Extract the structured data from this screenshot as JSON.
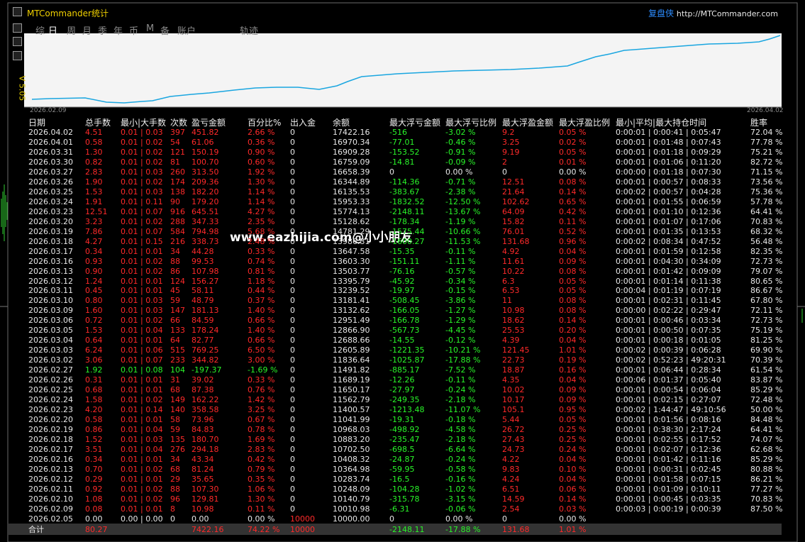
{
  "header": {
    "title": "MTCommander统计",
    "brand": "复盘侠",
    "url": "http://MTCommander.com",
    "version": "V 5.05"
  },
  "tabs": [
    "综",
    "日",
    "周",
    "月",
    "季",
    "年",
    "币",
    "M",
    "备",
    "账户",
    "轨迹"
  ],
  "chart": {
    "start": "2026.02.09",
    "end": "2026.04.02"
  },
  "watermark": "www.eazhijia.com@小小朋友",
  "table": {
    "columns": [
      "日期",
      "总手数",
      "最小|大手数",
      "次数",
      "盈亏金额",
      "百分比%",
      "出入金",
      "余额",
      "最大浮亏金额",
      "最大浮亏比例",
      "最大浮盈金额",
      "最大浮盈比例",
      "最小|平均|最大持仓时间",
      "胜率"
    ],
    "rows": [
      [
        "2026.04.02",
        "4.51",
        "0.01 | 0.03",
        "397",
        "451.82",
        "2.66 %",
        "0",
        "17422.16",
        "-516",
        "-3.02 %",
        "9.2",
        "0.05 %",
        "0:00:01 | 0:00:41 | 0:05:47",
        "72.04 %"
      ],
      [
        "2026.04.01",
        "0.58",
        "0.01 | 0.02",
        "54",
        "61.06",
        "0.36 %",
        "0",
        "16970.34",
        "-77.01",
        "-0.46 %",
        "3.25",
        "0.02 %",
        "0:00:01 | 0:01:48 | 0:07:43",
        "77.78 %"
      ],
      [
        "2026.03.31",
        "1.30",
        "0.01 | 0.02",
        "121",
        "150.19",
        "0.90 %",
        "0",
        "16909.28",
        "-153.52",
        "-0.91 %",
        "9.19",
        "0.05 %",
        "0:00:01 | 0:01:18 | 0:09:29",
        "75.21 %"
      ],
      [
        "2026.03.30",
        "0.82",
        "0.01 | 0.02",
        "81",
        "100.70",
        "0.60 %",
        "0",
        "16759.09",
        "-14.81",
        "-0.09 %",
        "2",
        "0.01 %",
        "0:00:01 | 0:01:06 | 0:11:20",
        "82.72 %"
      ],
      [
        "2026.03.27",
        "2.83",
        "0.01 | 0.03",
        "260",
        "313.50",
        "1.92 %",
        "0",
        "16658.39",
        "0",
        "0.00 %",
        "0",
        "0.00 %",
        "0:00:00 | 0:01:18 | 0:07:30",
        "71.15 %"
      ],
      [
        "2026.03.26",
        "1.90",
        "0.01 | 0.02",
        "174",
        "209.36",
        "1.30 %",
        "0",
        "16344.89",
        "-114.36",
        "-0.71 %",
        "12.51",
        "0.08 %",
        "0:00:01 | 0:00:57 | 0:08:33",
        "73.56 %"
      ],
      [
        "2026.03.25",
        "1.53",
        "0.01 | 0.03",
        "138",
        "182.20",
        "1.14 %",
        "0",
        "16135.53",
        "-383.67",
        "-2.38 %",
        "21.64",
        "0.14 %",
        "0:00:02 | 0:00:57 | 0:04:28",
        "75.36 %"
      ],
      [
        "2026.03.24",
        "1.91",
        "0.01 | 0.11",
        "90",
        "179.20",
        "1.14 %",
        "0",
        "15953.33",
        "-1832.52",
        "-12.50 %",
        "102.62",
        "0.65 %",
        "0:00:01 | 0:01:55 | 0:06:59",
        "57.78 %"
      ],
      [
        "2026.03.23",
        "12.51",
        "0.01 | 0.07",
        "916",
        "645.51",
        "4.27 %",
        "0",
        "15774.13",
        "-2148.11",
        "-13.67 %",
        "64.09",
        "0.42 %",
        "0:00:01 | 0:01:10 | 0:12:36",
        "64.41 %"
      ],
      [
        "2026.03.20",
        "3.23",
        "0.01 | 0.02",
        "288",
        "347.33",
        "2.35 %",
        "0",
        "15128.62",
        "-178.34",
        "-1.19 %",
        "15.82",
        "0.11 %",
        "0:00:01 | 0:01:07 | 0:17:06",
        "70.83 %"
      ],
      [
        "2026.03.19",
        "7.86",
        "0.01 | 0.07",
        "584",
        "794.98",
        "5.68 %",
        "0",
        "14781.29",
        "-1575.44",
        "-10.66 %",
        "76.01",
        "0.52 %",
        "0:00:01 | 0:01:35 | 0:13:53",
        "68.32 %"
      ],
      [
        "2026.03.18",
        "4.27",
        "0.01 | 0.15",
        "216",
        "338.73",
        "2.48 %",
        "0",
        "13986.31",
        "-1600.27",
        "-11.53 %",
        "131.68",
        "0.96 %",
        "0:00:02 | 0:08:34 | 0:47:52",
        "56.48 %"
      ],
      [
        "2026.03.17",
        "0.34",
        "0.01 | 0.01",
        "34",
        "44.28",
        "0.33 %",
        "0",
        "13647.58",
        "-15.35",
        "-0.11 %",
        "4.92",
        "0.04 %",
        "0:00:01 | 0:01:59 | 0:12:58",
        "82.35 %"
      ],
      [
        "2026.03.16",
        "0.93",
        "0.01 | 0.02",
        "88",
        "99.53",
        "0.74 %",
        "0",
        "13603.30",
        "-151.11",
        "-1.11 %",
        "11.61",
        "0.09 %",
        "0:00:01 | 0:04:30 | 0:34:09",
        "72.73 %"
      ],
      [
        "2026.03.13",
        "0.90",
        "0.01 | 0.02",
        "86",
        "107.98",
        "0.81 %",
        "0",
        "13503.77",
        "-76.16",
        "-0.57 %",
        "10.22",
        "0.08 %",
        "0:00:01 | 0:01:42 | 0:09:09",
        "79.07 %"
      ],
      [
        "2026.03.12",
        "1.24",
        "0.01 | 0.01",
        "124",
        "156.27",
        "1.18 %",
        "0",
        "13395.79",
        "-45.92",
        "-0.34 %",
        "6.3",
        "0.05 %",
        "0:00:01 | 0:01:14 | 0:11:38",
        "80.65 %"
      ],
      [
        "2026.03.11",
        "0.45",
        "0.01 | 0.01",
        "45",
        "58.11",
        "0.44 %",
        "0",
        "13239.52",
        "-19.97",
        "-0.15 %",
        "6.53",
        "0.05 %",
        "0:00:04 | 0:01:19 | 0:07:19",
        "86.67 %"
      ],
      [
        "2026.03.10",
        "0.80",
        "0.01 | 0.03",
        "59",
        "48.79",
        "0.37 %",
        "0",
        "13181.41",
        "-508.45",
        "-3.86 %",
        "11",
        "0.08 %",
        "0:00:01 | 0:02:31 | 0:11:45",
        "67.80 %"
      ],
      [
        "2026.03.09",
        "1.60",
        "0.01 | 0.03",
        "147",
        "181.13",
        "1.40 %",
        "0",
        "13132.62",
        "-166.05",
        "-1.27 %",
        "10.98",
        "0.08 %",
        "0:00:00 | 0:02:22 | 0:29:47",
        "72.11 %"
      ],
      [
        "2026.03.06",
        "0.72",
        "0.01 | 0.02",
        "66",
        "84.59",
        "0.66 %",
        "0",
        "12951.49",
        "-166.78",
        "-1.29 %",
        "18.62",
        "0.14 %",
        "0:00:01 | 0:00:46 | 0:03:34",
        "72.73 %"
      ],
      [
        "2026.03.05",
        "1.53",
        "0.01 | 0.04",
        "133",
        "178.24",
        "1.40 %",
        "0",
        "12866.90",
        "-567.73",
        "-4.45 %",
        "25.53",
        "0.20 %",
        "0:00:01 | 0:00:50 | 0:07:35",
        "75.19 %"
      ],
      [
        "2026.03.04",
        "0.64",
        "0.01 | 0.01",
        "64",
        "82.77",
        "0.66 %",
        "0",
        "12688.66",
        "-14.55",
        "-0.12 %",
        "4.39",
        "0.04 %",
        "0:00:01 | 0:00:18 | 0:01:05",
        "81.25 %"
      ],
      [
        "2026.03.03",
        "6.24",
        "0.01 | 0.06",
        "515",
        "769.25",
        "6.50 %",
        "0",
        "12605.89",
        "-1221.35",
        "-10.21 %",
        "121.45",
        "1.01 %",
        "0:00:02 | 0:00:39 | 0:06:28",
        "69.90 %"
      ],
      [
        "2026.03.02",
        "3.06",
        "0.01 | 0.07",
        "233",
        "344.82",
        "3.00 %",
        "0",
        "11836.64",
        "-1025.87",
        "-17.88 %",
        "22.73",
        "0.19 %",
        "0:00:02 | 0:52:23 | 49:20:31",
        "70.39 %"
      ],
      [
        "2026.02.27",
        "1.92",
        "0.01 | 0.08",
        "104",
        "-197.37",
        "-1.69 %",
        "0",
        "11491.82",
        "-885.17",
        "-7.52 %",
        "18.87",
        "0.16 %",
        "0:00:01 | 0:06:44 | 0:28:34",
        "61.54 %"
      ],
      [
        "2026.02.26",
        "0.31",
        "0.01 | 0.01",
        "31",
        "39.02",
        "0.33 %",
        "0",
        "11689.19",
        "-12.26",
        "-0.11 %",
        "4.35",
        "0.04 %",
        "0:00:06 | 0:01:37 | 0:05:40",
        "83.87 %"
      ],
      [
        "2026.02.25",
        "0.68",
        "0.01 | 0.01",
        "68",
        "87.38",
        "0.76 %",
        "0",
        "11650.17",
        "-27.97",
        "-0.24 %",
        "10.02",
        "0.09 %",
        "0:00:01 | 0:00:54 | 0:06:04",
        "85.29 %"
      ],
      [
        "2026.02.24",
        "1.58",
        "0.01 | 0.02",
        "149",
        "162.22",
        "1.42 %",
        "0",
        "11562.79",
        "-249.35",
        "-2.18 %",
        "10.17",
        "0.09 %",
        "0:00:01 | 0:02:15 | 0:27:07",
        "72.48 %"
      ],
      [
        "2026.02.23",
        "4.20",
        "0.01 | 0.14",
        "140",
        "358.58",
        "3.25 %",
        "0",
        "11400.57",
        "-1213.48",
        "-11.07 %",
        "105.1",
        "0.95 %",
        "0:00:02 | 1:44:47 | 49:10:56",
        "50.00 %"
      ],
      [
        "2026.02.20",
        "0.58",
        "0.01 | 0.01",
        "58",
        "73.96",
        "0.67 %",
        "0",
        "11041.99",
        "-19.31",
        "-0.18 %",
        "5.44",
        "0.05 %",
        "0:00:01 | 0:01:56 | 0:08:16",
        "84.48 %"
      ],
      [
        "2026.02.19",
        "0.86",
        "0.01 | 0.04",
        "59",
        "84.83",
        "0.78 %",
        "0",
        "10968.03",
        "-498.92",
        "-4.58 %",
        "26.72",
        "0.25 %",
        "0:00:01 | 0:38:30 | 2:17:24",
        "64.41 %"
      ],
      [
        "2026.02.18",
        "1.52",
        "0.01 | 0.03",
        "135",
        "180.70",
        "1.69 %",
        "0",
        "10883.20",
        "-235.47",
        "-2.18 %",
        "27.43",
        "0.25 %",
        "0:00:01 | 0:02:55 | 0:17:52",
        "74.07 %"
      ],
      [
        "2026.02.17",
        "3.51",
        "0.01 | 0.04",
        "276",
        "294.18",
        "2.83 %",
        "0",
        "10702.50",
        "-698.5",
        "-6.64 %",
        "24.73",
        "0.24 %",
        "0:00:01 | 0:02:07 | 0:12:36",
        "62.68 %"
      ],
      [
        "2026.02.16",
        "0.34",
        "0.01 | 0.01",
        "34",
        "43.34",
        "0.42 %",
        "0",
        "10408.32",
        "-24.87",
        "-0.24 %",
        "4.22",
        "0.04 %",
        "0:00:01 | 0:01:42 | 0:11:16",
        "85.29 %"
      ],
      [
        "2026.02.13",
        "0.70",
        "0.01 | 0.02",
        "68",
        "81.24",
        "0.79 %",
        "0",
        "10364.98",
        "-59.95",
        "-0.58 %",
        "9.83",
        "0.10 %",
        "0:00:01 | 0:00:31 | 0:02:45",
        "80.88 %"
      ],
      [
        "2026.02.12",
        "0.29",
        "0.01 | 0.01",
        "29",
        "35.65",
        "0.35 %",
        "0",
        "10283.74",
        "-16.5",
        "-0.16 %",
        "4.24",
        "0.04 %",
        "0:00:01 | 0:01:58 | 0:07:15",
        "86.21 %"
      ],
      [
        "2026.02.11",
        "0.92",
        "0.01 | 0.02",
        "88",
        "107.30",
        "1.06 %",
        "0",
        "10248.09",
        "-104.28",
        "-1.02 %",
        "6.51",
        "0.06 %",
        "0:00:01 | 0:01:09 | 0:10:11",
        "77.27 %"
      ],
      [
        "2026.02.10",
        "1.08",
        "0.01 | 0.02",
        "96",
        "129.81",
        "1.30 %",
        "0",
        "10140.79",
        "-315.78",
        "-3.15 %",
        "14.59",
        "0.14 %",
        "0:00:01 | 0:00:45 | 0:03:35",
        "70.83 %"
      ],
      [
        "2026.02.09",
        "0.08",
        "0.01 | 0.01",
        "8",
        "10.98",
        "0.11 %",
        "0",
        "10010.98",
        "-6.31",
        "-0.06 %",
        "2.54",
        "0.03 %",
        "0:00:03 | 0:00:19 | 0:00:39",
        "87.50 %"
      ],
      [
        "2026.02.05",
        "0.00",
        "0.00 | 0.00",
        "0",
        "0.00",
        "0.00 %",
        "10000",
        "10000.00",
        "0",
        "0.00 %",
        "0",
        "0.00 %"
      ]
    ],
    "total": {
      "label": "合计",
      "lots": "80.27",
      "pnl": "7422.16",
      "pct": "74.22 %",
      "deposit": "10000",
      "max_float_loss": "-2148.11",
      "max_float_loss_pct": "-17.88 %",
      "max_float_profit": "131.68",
      "max_float_profit_pct": "1.01 %"
    }
  }
}
